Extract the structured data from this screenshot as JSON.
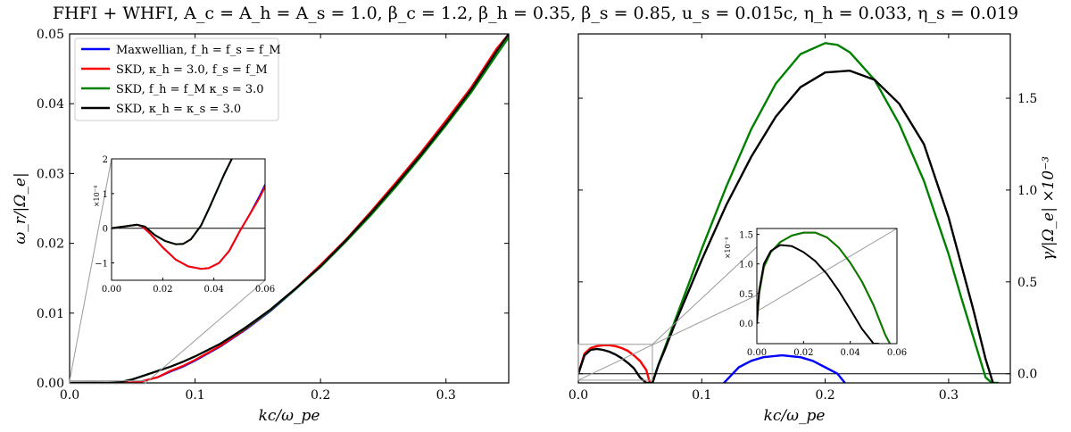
{
  "figure_title": "FHFI + WHFI, A_c = A_h = A_s = 1.0, β_c = 1.2, β_h = 0.35, β_s = 0.85, u_s = 0.015c, η_h = 0.033, η_s = 0.019",
  "colors": {
    "maxwellian": "#0000ff",
    "skd_kh": "#ff0000",
    "skd_ks": "#008000",
    "skd_both": "#000000"
  },
  "chart_data": [
    {
      "type": "line",
      "panel": "left",
      "xlabel": "kc/ω_pe",
      "ylabel": "ω_r/|Ω_e|",
      "xlim": [
        0,
        0.35
      ],
      "ylim": [
        0,
        0.05
      ],
      "xticks": [
        "0.0",
        "0.1",
        "0.2",
        "0.3"
      ],
      "yticks": [
        "0.00",
        "0.01",
        "0.02",
        "0.03",
        "0.04",
        "0.05"
      ],
      "legend_position": "top-left",
      "series": [
        {
          "name": "Maxwellian, f_h = f_s = f_M",
          "x": [
            0,
            0.02,
            0.04,
            0.055,
            0.07,
            0.08,
            0.09,
            0.1,
            0.12,
            0.14,
            0.16,
            0.18,
            0.2,
            0.22,
            0.24,
            0.26,
            0.28,
            0.3,
            0.32,
            0.34,
            0.35
          ],
          "y": [
            0,
            0,
            0,
            0.0001,
            0.0008,
            0.0016,
            0.0023,
            0.0032,
            0.0052,
            0.0076,
            0.0103,
            0.0134,
            0.0168,
            0.0204,
            0.0243,
            0.0285,
            0.0328,
            0.0373,
            0.042,
            0.0475,
            0.05
          ]
        },
        {
          "name": "SKD, κ_h = 3.0, f_s = f_M",
          "x": [
            0,
            0.02,
            0.04,
            0.055,
            0.07,
            0.08,
            0.09,
            0.1,
            0.12,
            0.14,
            0.16,
            0.18,
            0.2,
            0.22,
            0.24,
            0.26,
            0.28,
            0.3,
            0.32,
            0.34,
            0.35
          ],
          "y": [
            0,
            0,
            0,
            0.0001,
            0.0008,
            0.0017,
            0.0024,
            0.0033,
            0.0053,
            0.0077,
            0.0104,
            0.0135,
            0.0169,
            0.0205,
            0.0245,
            0.0287,
            0.033,
            0.0376,
            0.0423,
            0.0478,
            0.05
          ]
        },
        {
          "name": "SKD, f_h = f_M κ_s = 3.0",
          "x": [
            0,
            0.02,
            0.03,
            0.04,
            0.05,
            0.06,
            0.07,
            0.08,
            0.09,
            0.1,
            0.12,
            0.14,
            0.16,
            0.18,
            0.2,
            0.22,
            0.24,
            0.26,
            0.28,
            0.3,
            0.32,
            0.34,
            0.352
          ],
          "y": [
            0,
            3e-05,
            0,
            0.0001,
            0.0005,
            0.0011,
            0.0017,
            0.0023,
            0.003,
            0.0038,
            0.0056,
            0.0078,
            0.0104,
            0.0134,
            0.0166,
            0.0202,
            0.024,
            0.0281,
            0.0324,
            0.0369,
            0.0416,
            0.0469,
            0.05
          ]
        },
        {
          "name": "SKD, κ_h = κ_s = 3.0",
          "x": [
            0,
            0.02,
            0.03,
            0.04,
            0.05,
            0.06,
            0.07,
            0.08,
            0.09,
            0.1,
            0.12,
            0.14,
            0.16,
            0.18,
            0.2,
            0.22,
            0.24,
            0.26,
            0.28,
            0.3,
            0.32,
            0.34,
            0.35
          ],
          "y": [
            0,
            3e-05,
            0,
            0.0001,
            0.0005,
            0.0011,
            0.0017,
            0.0023,
            0.003,
            0.0038,
            0.0056,
            0.0079,
            0.0105,
            0.0135,
            0.0167,
            0.0204,
            0.0243,
            0.0284,
            0.0327,
            0.0372,
            0.042,
            0.0474,
            0.05
          ]
        }
      ],
      "inset": {
        "xlim": [
          0,
          0.06
        ],
        "ylim": [
          -1.5,
          2
        ],
        "xticks": [
          "0.00",
          "0.02",
          "0.04",
          "0.06"
        ],
        "yticks": [
          "−1",
          "0",
          "1",
          "2"
        ],
        "scale_label": "×10⁻⁴",
        "series": [
          {
            "x": [
              0,
              0.005,
              0.01,
              0.012,
              0.015,
              0.02,
              0.025,
              0.03,
              0.035,
              0.038,
              0.042,
              0.046,
              0.05,
              0.054,
              0.058,
              0.06
            ],
            "y": [
              0,
              0.05,
              0.1,
              0.05,
              -0.15,
              -0.55,
              -0.9,
              -1.1,
              -1.17,
              -1.15,
              -1.0,
              -0.65,
              -0.1,
              0.4,
              0.95,
              1.25
            ]
          },
          {
            "x": [
              0,
              0.005,
              0.01,
              0.012,
              0.015,
              0.02,
              0.025,
              0.03,
              0.035,
              0.038,
              0.042,
              0.046,
              0.05,
              0.054,
              0.058,
              0.06
            ],
            "y": [
              0,
              0.05,
              0.1,
              0.05,
              -0.15,
              -0.55,
              -0.9,
              -1.1,
              -1.17,
              -1.15,
              -1.0,
              -0.65,
              -0.1,
              0.4,
              0.9,
              1.2
            ]
          },
          {
            "x": [
              0,
              0.005,
              0.01,
              0.013,
              0.017,
              0.021,
              0.025,
              0.028,
              0.031,
              0.035,
              0.038,
              0.041,
              0.044,
              0.047
            ],
            "y": [
              0,
              0.05,
              0.1,
              0.05,
              -0.2,
              -0.37,
              -0.46,
              -0.45,
              -0.32,
              0.08,
              0.55,
              1.05,
              1.55,
              2.0
            ]
          },
          {
            "x": [
              0,
              0.005,
              0.01,
              0.013,
              0.017,
              0.021,
              0.025,
              0.028,
              0.031,
              0.035,
              0.038,
              0.041,
              0.044,
              0.047
            ],
            "y": [
              0,
              0.05,
              0.1,
              0.05,
              -0.2,
              -0.37,
              -0.46,
              -0.45,
              -0.32,
              0.08,
              0.55,
              1.05,
              1.55,
              2.0
            ]
          }
        ]
      }
    },
    {
      "type": "line",
      "panel": "right",
      "xlabel": "kc/ω_pe",
      "ylabel": "γ/|Ω_e| ×10⁻³",
      "xlim": [
        0,
        0.35
      ],
      "ylim": [
        -0.05,
        1.85
      ],
      "xticks": [
        "0.0",
        "0.1",
        "0.2",
        "0.3"
      ],
      "yticks": [
        "0.0",
        "0.5",
        "1.0",
        "1.5"
      ],
      "series": [
        {
          "x": [
            0.118,
            0.13,
            0.14,
            0.15,
            0.165,
            0.18,
            0.19,
            0.2,
            0.21,
            0.216
          ],
          "y": [
            -0.05,
            0.035,
            0.07,
            0.09,
            0.1,
            0.09,
            0.07,
            0.035,
            0.0,
            -0.05
          ]
        },
        {
          "x": [
            0,
            0.005,
            0.01,
            0.015,
            0.02,
            0.025,
            0.03,
            0.035,
            0.04,
            0.045,
            0.05,
            0.055,
            0.058
          ],
          "y": [
            0,
            0.11,
            0.14,
            0.15,
            0.155,
            0.155,
            0.15,
            0.14,
            0.125,
            0.1,
            0.07,
            0.02,
            -0.05
          ]
        },
        {
          "x": [
            0.06,
            0.065,
            0.07,
            0.08,
            0.09,
            0.1,
            0.12,
            0.14,
            0.16,
            0.18,
            0.2,
            0.21,
            0.22,
            0.24,
            0.26,
            0.28,
            0.3,
            0.31,
            0.32,
            0.33,
            0.335,
            0.34
          ],
          "y": [
            -0.05,
            0.05,
            0.14,
            0.32,
            0.5,
            0.68,
            1.02,
            1.33,
            1.58,
            1.74,
            1.8,
            1.79,
            1.75,
            1.6,
            1.36,
            1.05,
            0.65,
            0.42,
            0.2,
            -0.02,
            -0.05,
            -0.05
          ]
        },
        {
          "x": [
            0,
            0.005,
            0.01,
            0.015,
            0.02,
            0.025,
            0.03,
            0.035,
            0.04,
            0.045,
            0.05,
            0.055,
            0.06,
            0.065,
            0.07,
            0.08,
            0.09,
            0.1,
            0.12,
            0.14,
            0.16,
            0.18,
            0.2,
            0.22,
            0.24,
            0.26,
            0.28,
            0.3,
            0.31,
            0.32,
            0.33,
            0.336
          ],
          "y": [
            0,
            0.1,
            0.13,
            0.135,
            0.13,
            0.12,
            0.105,
            0.085,
            0.06,
            0.03,
            -0.02,
            -0.05,
            -0.05,
            0.05,
            0.13,
            0.3,
            0.46,
            0.62,
            0.92,
            1.18,
            1.4,
            1.56,
            1.64,
            1.65,
            1.6,
            1.47,
            1.25,
            0.85,
            0.6,
            0.35,
            0.08,
            -0.05
          ]
        }
      ],
      "inset": {
        "xlim": [
          0,
          0.06
        ],
        "ylim": [
          -0.35,
          1.6
        ],
        "xticks": [
          "0.00",
          "0.02",
          "0.04",
          "0.06"
        ],
        "yticks": [
          "0.0",
          "0.5",
          "1.0",
          "1.5"
        ],
        "scale_label": "×10⁻⁴",
        "series": [
          {
            "x": [
              0,
              0.001,
              0.003,
              0.006,
              0.01,
              0.015,
              0.02,
              0.025,
              0.03,
              0.035,
              0.04,
              0.045,
              0.05,
              0.055,
              0.057
            ],
            "y": [
              0,
              0.5,
              0.95,
              1.2,
              1.37,
              1.48,
              1.53,
              1.53,
              1.45,
              1.28,
              1.02,
              0.7,
              0.3,
              -0.2,
              -0.35
            ]
          },
          {
            "x": [
              0,
              0.001,
              0.003,
              0.006,
              0.01,
              0.015,
              0.02,
              0.025,
              0.03,
              0.035,
              0.04,
              0.045,
              0.05,
              0.055,
              0.057
            ],
            "y": [
              0,
              0.5,
              0.95,
              1.2,
              1.37,
              1.48,
              1.53,
              1.53,
              1.45,
              1.28,
              1.02,
              0.7,
              0.3,
              -0.2,
              -0.35
            ]
          },
          {
            "x": [
              0,
              0.001,
              0.003,
              0.006,
              0.01,
              0.015,
              0.02,
              0.025,
              0.03,
              0.035,
              0.04,
              0.045,
              0.05,
              0.052
            ],
            "y": [
              0,
              0.55,
              1.0,
              1.22,
              1.32,
              1.3,
              1.2,
              1.05,
              0.83,
              0.55,
              0.23,
              -0.1,
              -0.35,
              -0.35
            ]
          }
        ]
      }
    }
  ]
}
